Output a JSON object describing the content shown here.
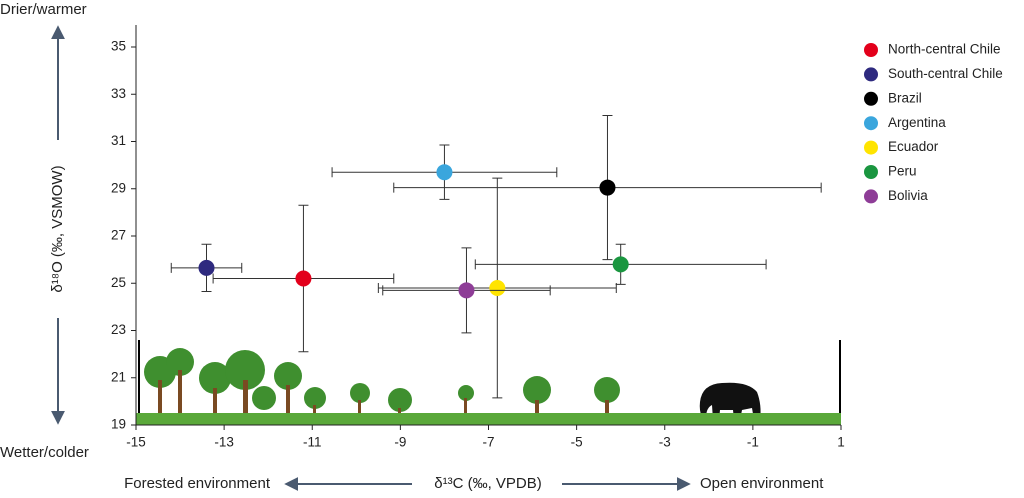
{
  "chart_data": {
    "type": "scatter",
    "x_label": "δ¹³C (‰, VPDB)",
    "y_label": "δ¹⁸O (‰, VSMOW)",
    "y_top_label": "Drier/warmer",
    "y_bottom_label": "Wetter/colder",
    "x_left_label": "Forested environment",
    "x_right_label": "Open environment",
    "xlim": [
      -15,
      1
    ],
    "xticks": [
      -15,
      -13,
      -11,
      -9,
      -7,
      -5,
      -3,
      -1,
      1
    ],
    "ylim": [
      19,
      36
    ],
    "yticks": [
      19,
      21,
      23,
      25,
      27,
      29,
      31,
      33,
      35
    ],
    "legend": "right",
    "series": [
      {
        "name": "North-central Chile",
        "color": "#e3001b",
        "x": [
          -11.2
        ],
        "values": [
          25.2
        ],
        "xerr": [
          2.05
        ],
        "yerr": [
          3.1
        ]
      },
      {
        "name": "South-central Chile",
        "color": "#2e2a7f",
        "x": [
          -13.4
        ],
        "values": [
          25.65
        ],
        "xerr": [
          0.8
        ],
        "yerr": [
          1.0
        ]
      },
      {
        "name": "Brazil",
        "color": "#000000",
        "x": [
          -4.3
        ],
        "values": [
          29.05
        ],
        "xerr": [
          4.85
        ],
        "yerr": [
          3.05
        ]
      },
      {
        "name": "Argentina",
        "color": "#3aa6dd",
        "x": [
          -8.0
        ],
        "values": [
          29.7
        ],
        "xerr": [
          2.55
        ],
        "yerr": [
          1.15
        ]
      },
      {
        "name": "Ecuador",
        "color": "#ffe400",
        "x": [
          -6.8
        ],
        "values": [
          24.8
        ],
        "xerr": [
          2.7
        ],
        "yerr": [
          4.65
        ]
      },
      {
        "name": "Peru",
        "color": "#1a9640",
        "x": [
          -4.0
        ],
        "values": [
          25.8
        ],
        "xerr": [
          3.3
        ],
        "yerr": [
          0.85
        ]
      },
      {
        "name": "Bolivia",
        "color": "#8e3d97",
        "x": [
          -7.5
        ],
        "values": [
          24.7
        ],
        "xerr": [
          1.9
        ],
        "yerr": [
          1.8
        ]
      }
    ]
  }
}
